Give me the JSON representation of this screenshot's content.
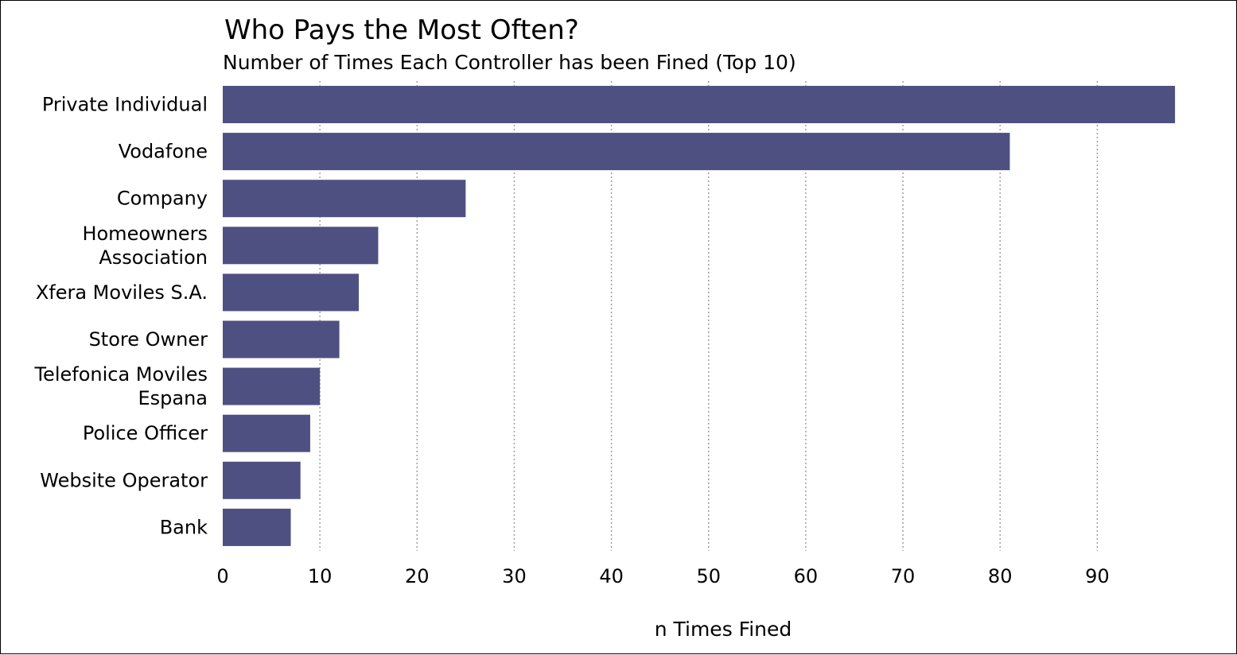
{
  "chart_data": {
    "type": "bar",
    "orientation": "horizontal",
    "title": "Who Pays the Most Often?",
    "subtitle": "Number of Times Each Controller has been Fined (Top 10)",
    "xlabel": "n Times Fined",
    "ylabel": "",
    "categories": [
      [
        "Private Individual"
      ],
      [
        "Vodafone"
      ],
      [
        "Company"
      ],
      [
        "Homeowners",
        "Association"
      ],
      [
        "Xfera Moviles S.A."
      ],
      [
        "Store Owner"
      ],
      [
        "Telefonica Moviles",
        "Espana"
      ],
      [
        "Police Officer"
      ],
      [
        "Website Operator"
      ],
      [
        "Bank"
      ]
    ],
    "values": [
      98,
      81,
      25,
      16,
      14,
      12,
      10,
      9,
      8,
      7
    ],
    "xlim": [
      0,
      100
    ],
    "xticks": [
      "0",
      "10",
      "20",
      "30",
      "40",
      "50",
      "60",
      "70",
      "80",
      "90"
    ],
    "grid": "vertical dotted",
    "bar_color": "#4f5082"
  }
}
